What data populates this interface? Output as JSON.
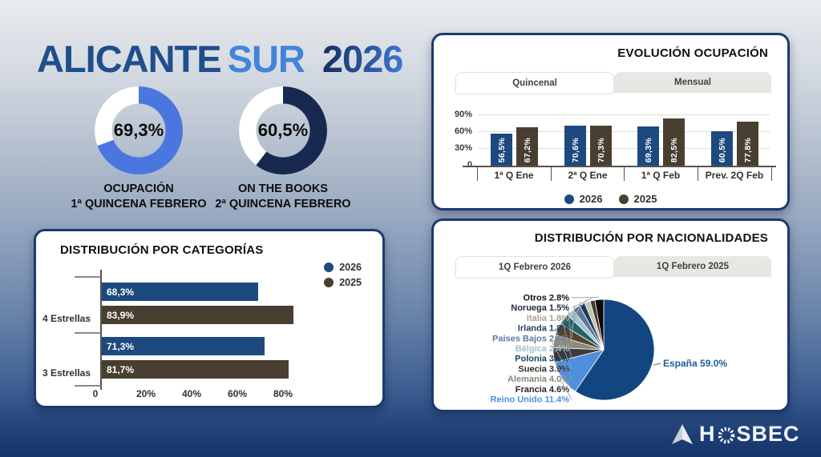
{
  "title": {
    "main": "ALICANTE",
    "sub": "SUR",
    "year": "2026"
  },
  "logo": {
    "brand": "HOSBEC"
  },
  "panels": {
    "evolution": {
      "title": "EVOLUCIÓN OCUPACIÓN",
      "tabs": [
        {
          "label": "Quincenal",
          "active": true
        },
        {
          "label": "Mensual",
          "active": false
        }
      ]
    },
    "categories": {
      "title": "DISTRIBUCIÓN POR CATEGORÍAS"
    },
    "nationalities": {
      "title": "DISTRIBUCIÓN POR NACIONALIDADES",
      "tabs": [
        {
          "label": "1Q Febrero 2026",
          "active": true
        },
        {
          "label": "1Q Febrero 2025",
          "active": false
        }
      ]
    }
  },
  "chart_data": [
    {
      "type": "donut",
      "title": "OCUPACIÓN 1ª QUINCENA FEBRERO",
      "value": 69.3,
      "value_label": "69,3%",
      "color": "#4A76E0",
      "rest_color": "#FFFFFF",
      "caption_line1": "OCUPACIÓN",
      "caption_line2": "1ª QUINCENA FEBRERO"
    },
    {
      "type": "donut",
      "title": "ON THE BOOKS 2ª QUINCENA FEBRERO",
      "value": 60.5,
      "value_label": "60,5%",
      "color": "#17294E",
      "rest_color": "#FFFFFF",
      "caption_line1": "ON THE BOOKS",
      "caption_line2": "2ª QUINCENA FEBRERO"
    },
    {
      "type": "bar",
      "title": "EVOLUCIÓN OCUPACIÓN",
      "categories": [
        "1ª Q Ene",
        "2ª Q Ene",
        "1ª Q Feb",
        "Prev. 2Q Feb"
      ],
      "series": [
        {
          "name": "2026",
          "color": "#1D4A7E",
          "values": [
            56.5,
            70.6,
            69.3,
            60.5
          ],
          "labels": [
            "56,5%",
            "70,6%",
            "69,3%",
            "60,5%"
          ]
        },
        {
          "name": "2025",
          "color": "#493F30",
          "values": [
            67.2,
            70.3,
            82.5,
            77.8
          ],
          "labels": [
            "67,2%",
            "70,3%",
            "82,5%",
            "77,8%"
          ]
        }
      ],
      "ylim": [
        0,
        90
      ],
      "yticks": [
        "90%",
        "60%",
        "30%",
        "0"
      ],
      "grid": true,
      "legend_position": "bottom"
    },
    {
      "type": "bar-horizontal",
      "title": "DISTRIBUCIÓN POR CATEGORÍAS",
      "categories": [
        "4 Estrellas",
        "3 Estrellas"
      ],
      "series": [
        {
          "name": "2026",
          "color": "#1D4A7E",
          "values": [
            68.3,
            71.3
          ],
          "labels": [
            "68,3%",
            "71,3%"
          ]
        },
        {
          "name": "2025",
          "color": "#493F30",
          "values": [
            83.9,
            81.7
          ],
          "labels": [
            "83,9%",
            "81,7%"
          ]
        }
      ],
      "xlim": [
        0,
        100
      ],
      "xticks": [
        "0",
        "20%",
        "40%",
        "60%",
        "80%"
      ],
      "legend_position": "top-right"
    },
    {
      "type": "pie",
      "title": "DISTRIBUCIÓN POR NACIONALIDADES",
      "slices": [
        {
          "name": "España",
          "value": 59.0,
          "label": "España 59.0%",
          "color": "#134680",
          "label_color": "#1D5C9C"
        },
        {
          "name": "Reino Unido",
          "value": 11.4,
          "label": "Reino Unido 11.4%",
          "color": "#4E90DC",
          "label_color": "#4E90DC"
        },
        {
          "name": "Francia",
          "value": 4.6,
          "label": "Francia 4.6%",
          "color": "#3B3B3B",
          "label_color": "#26262A"
        },
        {
          "name": "Alemania",
          "value": 4.0,
          "label": "Alemania 4.0%",
          "color": "#8F897D",
          "label_color": "#8C867B"
        },
        {
          "name": "Suecia",
          "value": 3.9,
          "label": "Suecia 3.9%",
          "color": "#54452C",
          "label_color": "#32302E"
        },
        {
          "name": "Polonia",
          "value": 3.5,
          "label": "Polonia 3.5%",
          "color": "#1F6468",
          "label_color": "#17455E"
        },
        {
          "name": "Bélgica",
          "value": 2.4,
          "label": "Bélgica 2.4%",
          "color": "#A5C4CE",
          "label_color": "#9FC0CB"
        },
        {
          "name": "Paises Bajos",
          "value": 2.4,
          "label": "Paises Bajos 2.4%",
          "color": "#5F7899",
          "label_color": "#5C7BA5"
        },
        {
          "name": "Irlanda",
          "value": 1.8,
          "label": "Irlanda 1.8%",
          "color": "#1C3A5F",
          "label_color": "#23405E"
        },
        {
          "name": "Italia",
          "value": 1.8,
          "label": "Italia 1.8%",
          "color": "#C9C2B4",
          "label_color": "#A8A296"
        },
        {
          "name": "Noruega",
          "value": 1.5,
          "label": "Noruega 1.5%",
          "color": "#463A26",
          "label_color": "#1F2A3C"
        },
        {
          "name": "Otros",
          "value": 2.8,
          "label": "Otros 2.8%",
          "color": "#0B0B0B",
          "label_color": "#111111"
        }
      ],
      "label_stack": [
        "Otros",
        "Noruega",
        "Italia",
        "Irlanda",
        "Paises Bajos",
        "Bélgica",
        "Polonia",
        "Suecia",
        "Alemania",
        "Francia",
        "Reino Unido"
      ],
      "callout_label": "España"
    }
  ]
}
